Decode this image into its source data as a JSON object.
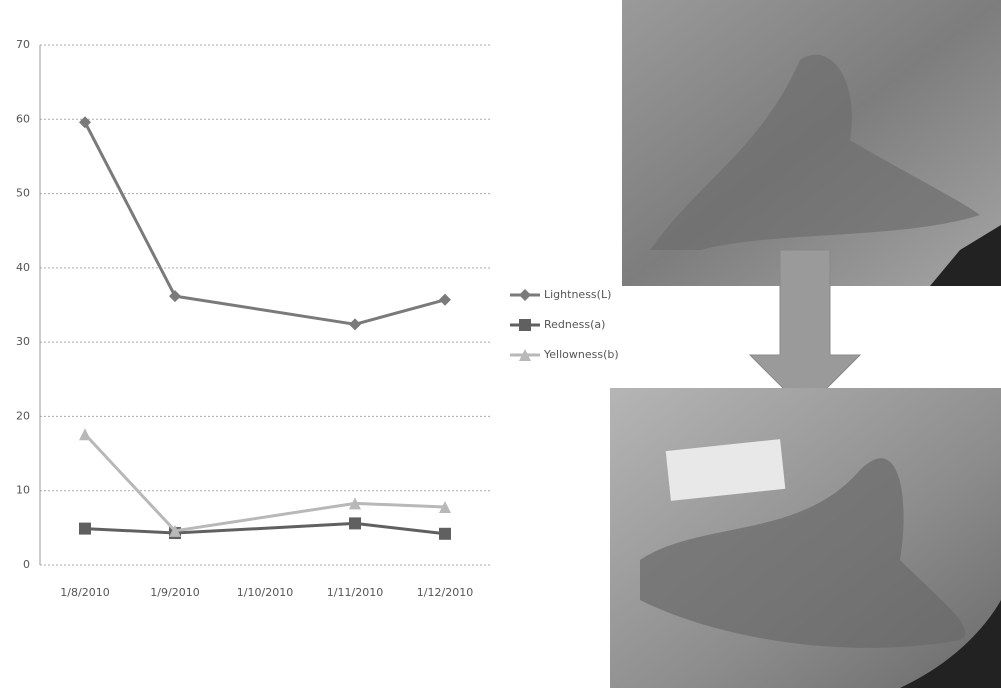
{
  "chart_data": {
    "type": "line",
    "categories": [
      "1/8/2010",
      "1/9/2010",
      "1/10/2010",
      "1/11/2010",
      "1/12/2010"
    ],
    "series": [
      {
        "name": "Lightness(L)",
        "color": "#7a7a7a",
        "marker": "diamond",
        "values": [
          59.6,
          36.2,
          null,
          32.4,
          35.7
        ]
      },
      {
        "name": "Redness(a)",
        "color": "#606060",
        "marker": "square",
        "values": [
          4.9,
          4.3,
          null,
          5.6,
          4.2
        ]
      },
      {
        "name": "Yellowness(b)",
        "color": "#b8b8b8",
        "marker": "triangle",
        "values": [
          17.6,
          4.6,
          null,
          8.3,
          7.8
        ]
      }
    ],
    "ylim": [
      0,
      70
    ],
    "yticks": [
      0,
      10,
      20,
      30,
      40,
      50,
      60,
      70
    ],
    "grid": true,
    "legend": "right"
  }
}
